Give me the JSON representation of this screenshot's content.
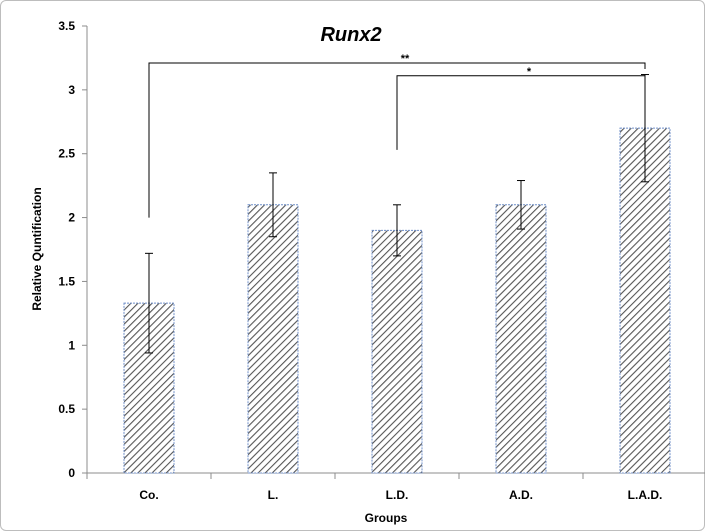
{
  "chart_data": {
    "type": "bar",
    "title": "Runx2",
    "xlabel": "Groups",
    "ylabel": "Relative Quntification",
    "categories": [
      "Co.",
      "L.",
      "L.D.",
      "A.D.",
      "L.A.D."
    ],
    "values": [
      1.33,
      2.1,
      1.9,
      2.1,
      2.7
    ],
    "error_bars": [
      {
        "low": 0.94,
        "high": 1.72
      },
      {
        "low": 1.85,
        "high": 2.35
      },
      {
        "low": 1.7,
        "high": 2.1
      },
      {
        "low": 1.91,
        "high": 2.29
      },
      {
        "low": 2.28,
        "high": 3.12
      }
    ],
    "ylim": [
      0,
      3.5
    ],
    "yticks": [
      "0",
      "0.5",
      "1",
      "1.5",
      "2",
      "2.5",
      "3",
      "3.5"
    ],
    "ytick_values": [
      0,
      0.5,
      1,
      1.5,
      2,
      2.5,
      3,
      3.5
    ],
    "grid": false,
    "legend": "none",
    "bar_fill": "diagonal-hatch",
    "bar_colors": {
      "fill_background": "#ffffff",
      "hatch": "#555555",
      "border": "#6f8fc9"
    },
    "significance": [
      {
        "label": "**",
        "from_category": "Co.",
        "to_category": "L.A.D.",
        "y": 3.21,
        "left_drop_to": 2.0
      },
      {
        "label": "*",
        "from_category": "L.D.",
        "to_category": "L.A.D.",
        "y": 3.11,
        "left_drop_to": 2.53
      }
    ]
  }
}
